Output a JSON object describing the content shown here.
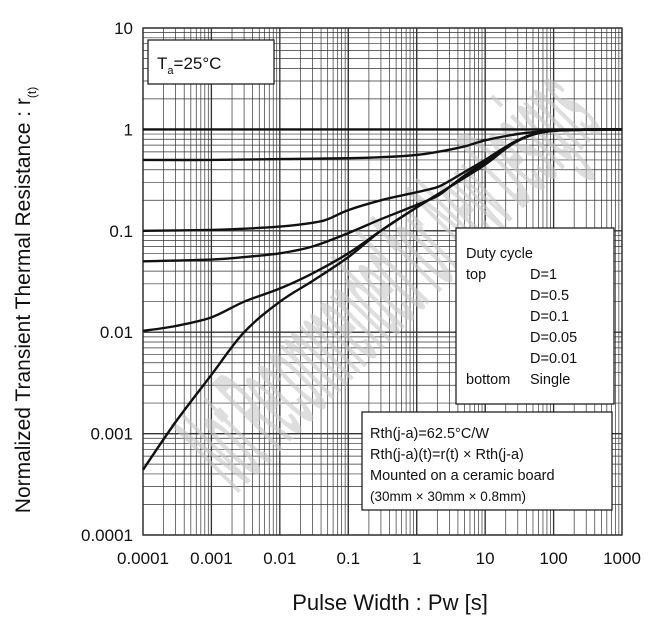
{
  "chart_data": {
    "type": "line",
    "xlabel": "Pulse Width : Pw [s]",
    "ylabel": "Normalized Transient Thermal Resistance : r",
    "ylabel_subscript": "(t)",
    "xscale": "log",
    "yscale": "log",
    "xlim": [
      0.0001,
      1000
    ],
    "ylim": [
      0.0001,
      10
    ],
    "grid": true,
    "x_tick_labels": [
      "0.0001",
      "0.001",
      "0.01",
      "0.1",
      "1",
      "10",
      "100",
      "1000"
    ],
    "y_tick_labels": [
      "10",
      "1",
      "0.1",
      "0.01",
      "0.001",
      "0.0001"
    ],
    "series": [
      {
        "name": "D=1",
        "x": [
          0.0001,
          1000
        ],
        "y": [
          1,
          1
        ]
      },
      {
        "name": "D=0.5",
        "x": [
          0.0001,
          0.001,
          0.01,
          0.1,
          0.5,
          1,
          2,
          5,
          10,
          30,
          100,
          1000
        ],
        "y": [
          0.5,
          0.5,
          0.51,
          0.52,
          0.54,
          0.56,
          0.6,
          0.68,
          0.78,
          0.9,
          0.97,
          1
        ]
      },
      {
        "name": "D=0.1",
        "x": [
          0.0001,
          0.001,
          0.003,
          0.01,
          0.03,
          0.05,
          0.1,
          0.3,
          1,
          2,
          3,
          5,
          10,
          30,
          100,
          1000
        ],
        "y": [
          0.1,
          0.102,
          0.105,
          0.11,
          0.12,
          0.13,
          0.16,
          0.2,
          0.24,
          0.27,
          0.31,
          0.38,
          0.5,
          0.78,
          0.97,
          1
        ]
      },
      {
        "name": "D=0.05",
        "x": [
          0.0001,
          0.001,
          0.003,
          0.01,
          0.03,
          0.1,
          0.3,
          1,
          2,
          3,
          5,
          10,
          30,
          100,
          1000
        ],
        "y": [
          0.05,
          0.052,
          0.055,
          0.06,
          0.07,
          0.095,
          0.13,
          0.18,
          0.22,
          0.27,
          0.35,
          0.48,
          0.78,
          0.97,
          1
        ]
      },
      {
        "name": "D=0.01",
        "x": [
          0.0001,
          0.0003,
          0.001,
          0.003,
          0.01,
          0.03,
          0.1,
          0.3,
          1,
          3,
          10,
          30,
          100,
          1000
        ],
        "y": [
          0.0103,
          0.0115,
          0.014,
          0.02,
          0.027,
          0.038,
          0.06,
          0.1,
          0.17,
          0.27,
          0.46,
          0.78,
          0.97,
          1
        ]
      },
      {
        "name": "Single",
        "x": [
          0.0001,
          0.0003,
          0.001,
          0.003,
          0.01,
          0.03,
          0.1,
          0.3,
          1,
          3,
          10,
          30,
          100,
          1000
        ],
        "y": [
          0.00044,
          0.0013,
          0.0038,
          0.01,
          0.02,
          0.032,
          0.055,
          0.1,
          0.17,
          0.27,
          0.45,
          0.77,
          0.97,
          1
        ]
      }
    ],
    "annotations": {
      "ta_label_main": "T",
      "ta_label_sub": "a",
      "ta_label_rest": "=25°C",
      "legend_box": {
        "title": "Duty cycle",
        "top_label": "top",
        "bottom_label": "bottom",
        "entries": [
          "D=1",
          "D=0.5",
          "D=0.1",
          "D=0.05",
          "D=0.01",
          "Single"
        ]
      },
      "info_box": {
        "lines": [
          "Rth(j-a)=62.5°C/W",
          "Rth(j-a)(t)=r(t) × Rth(j-a)",
          "Mounted on a ceramic board",
          "(30mm × 30mm × 0.8mm)"
        ]
      }
    },
    "watermark": "Not Recommended for New Designs"
  },
  "colors": {
    "curve": "#111111",
    "curve_highlight": "#7a7a7a",
    "grid": "#333333",
    "watermark": "#c8c8c8"
  }
}
